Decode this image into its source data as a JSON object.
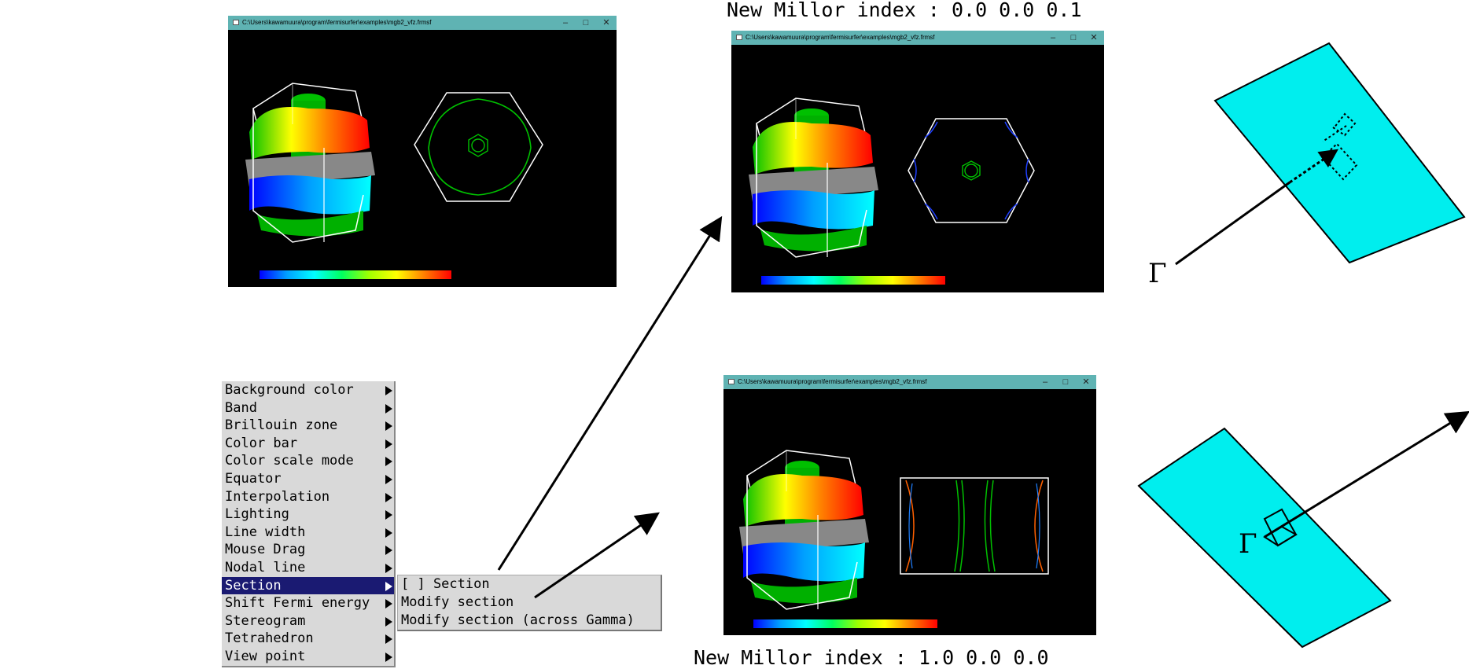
{
  "windows": {
    "title": "C:\\Users\\kawamuura\\program\\fermisurfer\\examples\\mgb2_vfz.frmsf",
    "minimize_glyph": "–",
    "maximize_glyph": "□",
    "close_glyph": "✕"
  },
  "captions": {
    "top": "New Millor index : 0.0 0.0 0.1",
    "bottom": "New Millor index : 1.0 0.0 0.0"
  },
  "menu": {
    "items": [
      {
        "label": "Background color"
      },
      {
        "label": "Band"
      },
      {
        "label": "Brillouin zone"
      },
      {
        "label": "Color bar"
      },
      {
        "label": "Color scale mode"
      },
      {
        "label": "Equator"
      },
      {
        "label": "Interpolation"
      },
      {
        "label": "Lighting"
      },
      {
        "label": "Line width"
      },
      {
        "label": "Mouse Drag"
      },
      {
        "label": "Nodal line"
      },
      {
        "label": "Section"
      },
      {
        "label": "Shift Fermi energy"
      },
      {
        "label": "Stereogram"
      },
      {
        "label": "Tetrahedron"
      },
      {
        "label": "View point"
      }
    ],
    "highlighted": "Section"
  },
  "submenu": {
    "items": [
      {
        "label": "[ ] Section"
      },
      {
        "label": "Modify section"
      },
      {
        "label": "Modify section (across Gamma)"
      }
    ]
  },
  "gamma_symbol": "Γ",
  "colors": {
    "titlebar": "#5fb3b3",
    "plane": "#00eeee",
    "menu_bg": "#d9d9d9",
    "menu_highlight": "#1a1a72"
  }
}
